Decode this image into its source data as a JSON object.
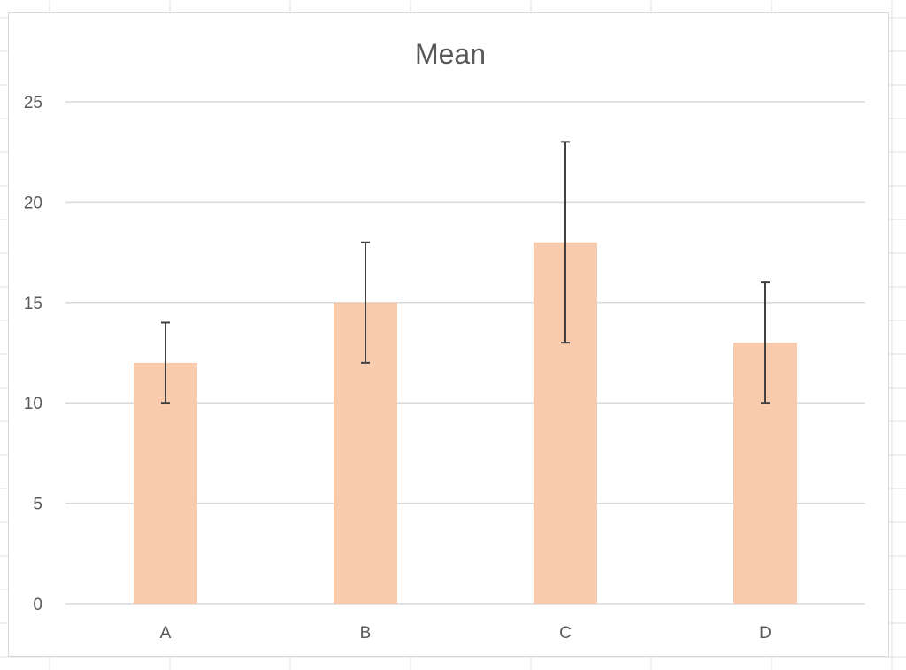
{
  "colors": {
    "bar_fill": "#f8cbad",
    "error_bar": "#404040",
    "gridline": "#d9d9d9",
    "axis_text": "#595959",
    "sheet_grid": "#e1e1e1"
  },
  "chart_data": {
    "type": "bar",
    "title": "Mean",
    "xlabel": "",
    "ylabel": "",
    "categories": [
      "A",
      "B",
      "C",
      "D"
    ],
    "series": [
      {
        "values": [
          12,
          15,
          18,
          13
        ],
        "error_low": [
          10,
          12,
          13,
          10
        ],
        "error_high": [
          14,
          18,
          23,
          16
        ]
      }
    ],
    "ylim": [
      0,
      25
    ],
    "yticks": [
      "0",
      "5",
      "10",
      "15",
      "20",
      "25"
    ],
    "grid": true,
    "legend": "none"
  }
}
